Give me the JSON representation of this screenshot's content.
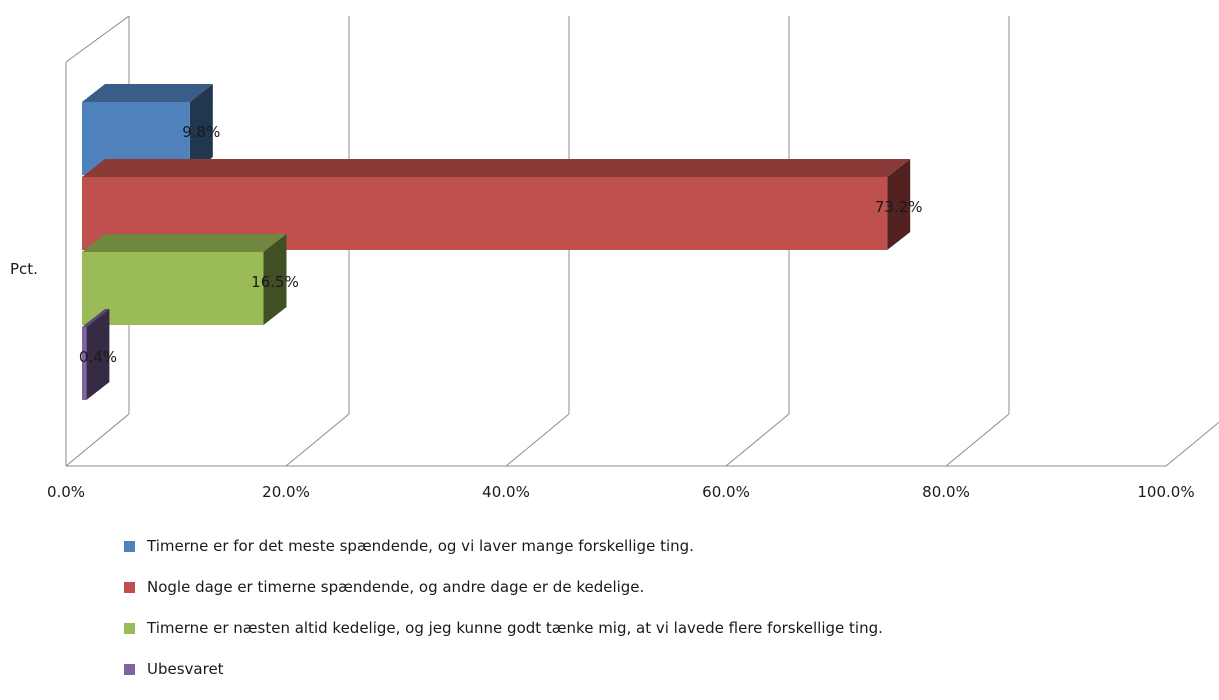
{
  "chart_data": {
    "type": "bar",
    "orientation": "horizontal",
    "style": "3d",
    "categories": [
      "Pct."
    ],
    "series": [
      {
        "name": "Timerne er for det meste spændende, og vi laver mange forskellige ting.",
        "values": [
          9.8
        ],
        "label": "9.8%",
        "color": "#4f81bd"
      },
      {
        "name": "Nogle dage er timerne spændende, og andre dage er de kedelige.",
        "values": [
          73.2
        ],
        "label": "73.2%",
        "color": "#c0504d"
      },
      {
        "name": "Timerne er næsten altid kedelige, og jeg kunne godt tænke mig, at vi lavede flere forskellige ting.",
        "values": [
          16.5
        ],
        "label": "16.5%",
        "color": "#9bbb59"
      },
      {
        "name": "Ubesvaret",
        "values": [
          0.4
        ],
        "label": "0.4%",
        "color": "#8064a2"
      }
    ],
    "xlim": [
      0,
      100
    ],
    "x_ticks": [
      "0.0%",
      "20.0%",
      "40.0%",
      "60.0%",
      "80.0%",
      "100.0%"
    ],
    "grid": true,
    "legend_position": "bottom"
  }
}
